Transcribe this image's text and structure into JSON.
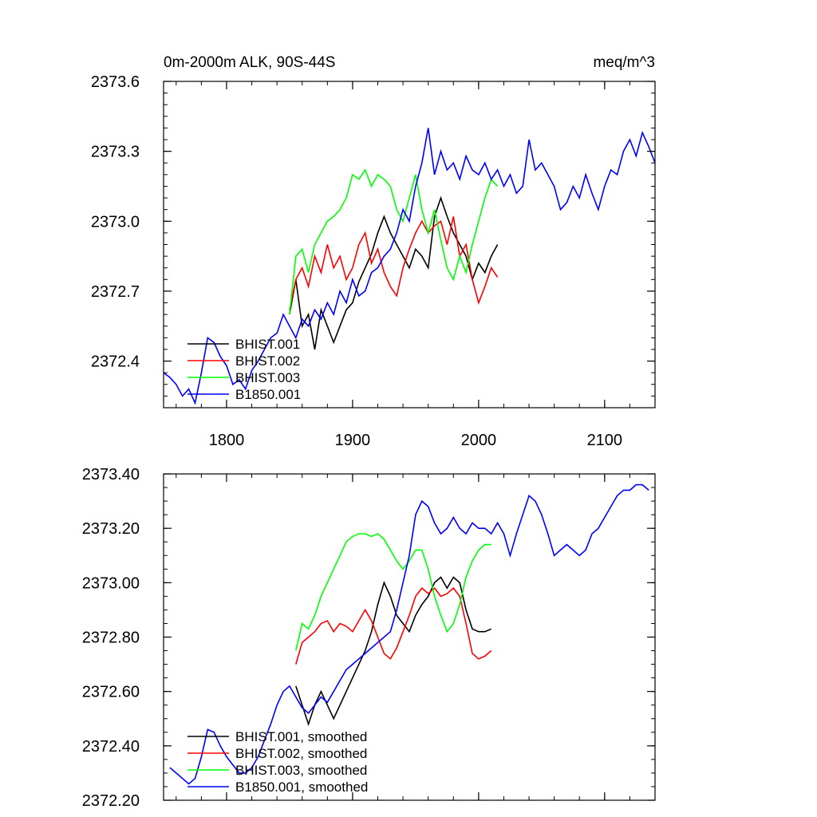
{
  "chart_data": [
    {
      "type": "line",
      "title_left": "0m-2000m ALK, 90S-44S",
      "title_right": "meq/m^3",
      "xlim": [
        1750,
        2140
      ],
      "ylim": [
        2372.2,
        2373.6
      ],
      "xticks": [
        1800,
        1900,
        2000,
        2100
      ],
      "xtick_labels": [
        "1800",
        "1900",
        "2000",
        "2100"
      ],
      "yticks": [
        2372.4,
        2372.7,
        2373.0,
        2373.3,
        2373.6
      ],
      "ytick_labels": [
        "2372.4",
        "2372.7",
        "2373.0",
        "2373.3",
        "2373.6"
      ],
      "legend_position": "bottom-left",
      "series": [
        {
          "name": "BHIST.001",
          "color": "#000000",
          "x": [
            1850,
            1855,
            1860,
            1865,
            1870,
            1875,
            1880,
            1885,
            1890,
            1895,
            1900,
            1905,
            1910,
            1915,
            1920,
            1925,
            1930,
            1935,
            1940,
            1945,
            1950,
            1955,
            1960,
            1965,
            1970,
            1975,
            1980,
            1985,
            1990,
            1995,
            2000,
            2005,
            2010,
            2015
          ],
          "y": [
            2372.6,
            2372.75,
            2372.55,
            2372.6,
            2372.45,
            2372.62,
            2372.55,
            2372.48,
            2372.55,
            2372.62,
            2372.65,
            2372.74,
            2372.8,
            2372.86,
            2372.95,
            2373.02,
            2372.95,
            2372.9,
            2372.85,
            2372.8,
            2372.88,
            2372.85,
            2372.8,
            2373.02,
            2373.1,
            2373.02,
            2372.95,
            2372.9,
            2372.85,
            2372.75,
            2372.82,
            2372.78,
            2372.85,
            2372.9
          ]
        },
        {
          "name": "BHIST.002",
          "color": "#ff0000",
          "x": [
            1850,
            1855,
            1860,
            1865,
            1870,
            1875,
            1880,
            1885,
            1890,
            1895,
            1900,
            1905,
            1910,
            1915,
            1920,
            1925,
            1930,
            1935,
            1940,
            1945,
            1950,
            1955,
            1960,
            1965,
            1970,
            1975,
            1980,
            1985,
            1990,
            1995,
            2000,
            2005,
            2010,
            2015
          ],
          "y": [
            2372.62,
            2372.75,
            2372.8,
            2372.72,
            2372.85,
            2372.78,
            2372.9,
            2372.8,
            2372.85,
            2372.75,
            2372.8,
            2372.9,
            2372.95,
            2372.82,
            2372.88,
            2372.78,
            2372.72,
            2372.68,
            2372.8,
            2372.88,
            2372.95,
            2373.0,
            2372.95,
            2372.98,
            2373.0,
            2372.9,
            2373.02,
            2372.85,
            2372.9,
            2372.75,
            2372.65,
            2372.72,
            2372.8,
            2372.76
          ]
        },
        {
          "name": "BHIST.003",
          "color": "#00ff00",
          "x": [
            1850,
            1855,
            1860,
            1865,
            1870,
            1875,
            1880,
            1885,
            1890,
            1895,
            1900,
            1905,
            1910,
            1915,
            1920,
            1925,
            1930,
            1935,
            1940,
            1945,
            1950,
            1955,
            1960,
            1965,
            1970,
            1975,
            1980,
            1985,
            1990,
            1995,
            2000,
            2005,
            2010,
            2015
          ],
          "y": [
            2372.6,
            2372.85,
            2372.88,
            2372.78,
            2372.9,
            2372.95,
            2373.0,
            2373.02,
            2373.05,
            2373.1,
            2373.2,
            2373.18,
            2373.22,
            2373.15,
            2373.2,
            2373.18,
            2373.15,
            2373.05,
            2373.0,
            2373.1,
            2373.2,
            2373.05,
            2372.95,
            2373.05,
            2372.92,
            2372.8,
            2372.75,
            2372.85,
            2372.78,
            2372.9,
            2373.0,
            2373.1,
            2373.18,
            2373.15
          ]
        },
        {
          "name": "B1850.001",
          "color": "#0000ff",
          "x": [
            1750,
            1755,
            1760,
            1765,
            1770,
            1775,
            1780,
            1785,
            1790,
            1795,
            1800,
            1805,
            1810,
            1815,
            1820,
            1825,
            1830,
            1835,
            1840,
            1845,
            1850,
            1855,
            1860,
            1865,
            1870,
            1875,
            1880,
            1885,
            1890,
            1895,
            1900,
            1905,
            1910,
            1915,
            1920,
            1925,
            1930,
            1935,
            1940,
            1945,
            1950,
            1955,
            1960,
            1965,
            1970,
            1975,
            1980,
            1985,
            1990,
            1995,
            2000,
            2005,
            2010,
            2015,
            2020,
            2025,
            2030,
            2035,
            2040,
            2045,
            2050,
            2055,
            2060,
            2065,
            2070,
            2075,
            2080,
            2085,
            2090,
            2095,
            2100,
            2105,
            2110,
            2115,
            2120,
            2125,
            2130,
            2135,
            2140
          ],
          "y": [
            2372.35,
            2372.33,
            2372.3,
            2372.25,
            2372.28,
            2372.22,
            2372.35,
            2372.5,
            2372.48,
            2372.42,
            2372.38,
            2372.3,
            2372.32,
            2372.28,
            2372.36,
            2372.4,
            2372.45,
            2372.5,
            2372.52,
            2372.6,
            2372.55,
            2372.5,
            2372.58,
            2372.55,
            2372.62,
            2372.58,
            2372.65,
            2372.6,
            2372.7,
            2372.65,
            2372.75,
            2372.68,
            2372.7,
            2372.78,
            2372.8,
            2372.85,
            2372.88,
            2372.95,
            2373.05,
            2373.0,
            2373.15,
            2373.25,
            2373.4,
            2373.2,
            2373.3,
            2373.22,
            2373.25,
            2373.18,
            2373.28,
            2373.22,
            2373.2,
            2373.25,
            2373.18,
            2373.22,
            2373.15,
            2373.2,
            2373.12,
            2373.15,
            2373.35,
            2373.22,
            2373.25,
            2373.2,
            2373.15,
            2373.05,
            2373.08,
            2373.15,
            2373.1,
            2373.2,
            2373.12,
            2373.05,
            2373.15,
            2373.22,
            2373.2,
            2373.3,
            2373.35,
            2373.28,
            2373.38,
            2373.32,
            2373.25
          ]
        }
      ]
    },
    {
      "type": "line",
      "xlim": [
        1750,
        2140
      ],
      "ylim": [
        2372.2,
        2373.4
      ],
      "xticks": [
        1800,
        1900,
        2000,
        2100
      ],
      "yticks": [
        2372.2,
        2372.4,
        2372.6,
        2372.8,
        2373.0,
        2373.2,
        2373.4
      ],
      "ytick_labels": [
        "2372.20",
        "2372.40",
        "2372.60",
        "2372.80",
        "2373.00",
        "2373.20",
        "2373.40"
      ],
      "legend_position": "bottom-left",
      "series": [
        {
          "name": "BHIST.001, smoothed",
          "color": "#000000",
          "x": [
            1855,
            1860,
            1865,
            1870,
            1875,
            1880,
            1885,
            1890,
            1895,
            1900,
            1905,
            1910,
            1915,
            1920,
            1925,
            1930,
            1935,
            1940,
            1945,
            1950,
            1955,
            1960,
            1965,
            1970,
            1975,
            1980,
            1985,
            1990,
            1995,
            2000,
            2005,
            2010
          ],
          "y": [
            2372.62,
            2372.55,
            2372.48,
            2372.55,
            2372.6,
            2372.55,
            2372.5,
            2372.55,
            2372.6,
            2372.65,
            2372.7,
            2372.75,
            2372.82,
            2372.92,
            2373.0,
            2372.95,
            2372.88,
            2372.85,
            2372.82,
            2372.88,
            2372.92,
            2372.95,
            2373.0,
            2373.02,
            2372.98,
            2373.02,
            2373.0,
            2372.9,
            2372.83,
            2372.82,
            2372.82,
            2372.83
          ]
        },
        {
          "name": "BHIST.002, smoothed",
          "color": "#ff0000",
          "x": [
            1855,
            1860,
            1865,
            1870,
            1875,
            1880,
            1885,
            1890,
            1895,
            1900,
            1905,
            1910,
            1915,
            1920,
            1925,
            1930,
            1935,
            1940,
            1945,
            1950,
            1955,
            1960,
            1965,
            1970,
            1975,
            1980,
            1985,
            1990,
            1995,
            2000,
            2005,
            2010
          ],
          "y": [
            2372.7,
            2372.78,
            2372.8,
            2372.82,
            2372.85,
            2372.86,
            2372.82,
            2372.85,
            2372.84,
            2372.82,
            2372.86,
            2372.9,
            2372.86,
            2372.8,
            2372.74,
            2372.72,
            2372.76,
            2372.82,
            2372.88,
            2372.95,
            2372.98,
            2372.96,
            2372.98,
            2372.95,
            2372.96,
            2372.98,
            2372.95,
            2372.85,
            2372.74,
            2372.72,
            2372.73,
            2372.75
          ]
        },
        {
          "name": "BHIST.003, smoothed",
          "color": "#00ff00",
          "x": [
            1855,
            1860,
            1865,
            1870,
            1875,
            1880,
            1885,
            1890,
            1895,
            1900,
            1905,
            1910,
            1915,
            1920,
            1925,
            1930,
            1935,
            1940,
            1945,
            1950,
            1955,
            1960,
            1965,
            1970,
            1975,
            1980,
            1985,
            1990,
            1995,
            2000,
            2005,
            2010
          ],
          "y": [
            2372.75,
            2372.85,
            2372.83,
            2372.88,
            2372.95,
            2373.0,
            2373.05,
            2373.1,
            2373.15,
            2373.17,
            2373.18,
            2373.18,
            2373.17,
            2373.18,
            2373.16,
            2373.12,
            2373.08,
            2373.05,
            2373.08,
            2373.12,
            2373.12,
            2373.05,
            2372.95,
            2372.88,
            2372.82,
            2372.85,
            2372.92,
            2373.02,
            2373.08,
            2373.12,
            2373.14,
            2373.14
          ]
        },
        {
          "name": "B1850.001, smoothed",
          "color": "#0000ff",
          "x": [
            1755,
            1760,
            1765,
            1770,
            1775,
            1780,
            1785,
            1790,
            1795,
            1800,
            1805,
            1810,
            1815,
            1820,
            1825,
            1830,
            1835,
            1840,
            1845,
            1850,
            1855,
            1860,
            1865,
            1870,
            1875,
            1880,
            1885,
            1890,
            1895,
            1900,
            1905,
            1910,
            1915,
            1920,
            1925,
            1930,
            1935,
            1940,
            1945,
            1950,
            1955,
            1960,
            1965,
            1970,
            1975,
            1980,
            1985,
            1990,
            1995,
            2000,
            2005,
            2010,
            2015,
            2020,
            2025,
            2030,
            2035,
            2040,
            2045,
            2050,
            2055,
            2060,
            2065,
            2070,
            2075,
            2080,
            2085,
            2090,
            2095,
            2100,
            2105,
            2110,
            2115,
            2120,
            2125,
            2130,
            2135
          ],
          "y": [
            2372.32,
            2372.3,
            2372.28,
            2372.26,
            2372.28,
            2372.36,
            2372.46,
            2372.45,
            2372.4,
            2372.36,
            2372.33,
            2372.3,
            2372.3,
            2372.32,
            2372.36,
            2372.42,
            2372.48,
            2372.55,
            2372.6,
            2372.62,
            2372.58,
            2372.54,
            2372.52,
            2372.55,
            2372.58,
            2372.56,
            2372.6,
            2372.64,
            2372.68,
            2372.7,
            2372.72,
            2372.74,
            2372.76,
            2372.78,
            2372.8,
            2372.82,
            2372.9,
            2373.0,
            2373.1,
            2373.25,
            2373.3,
            2373.28,
            2373.22,
            2373.18,
            2373.2,
            2373.24,
            2373.2,
            2373.18,
            2373.22,
            2373.2,
            2373.2,
            2373.18,
            2373.22,
            2373.18,
            2373.1,
            2373.18,
            2373.25,
            2373.32,
            2373.3,
            2373.25,
            2373.18,
            2373.1,
            2373.12,
            2373.14,
            2373.12,
            2373.1,
            2373.12,
            2373.18,
            2373.2,
            2373.24,
            2373.28,
            2373.32,
            2373.34,
            2373.34,
            2373.36,
            2373.36,
            2373.34
          ]
        }
      ]
    }
  ]
}
